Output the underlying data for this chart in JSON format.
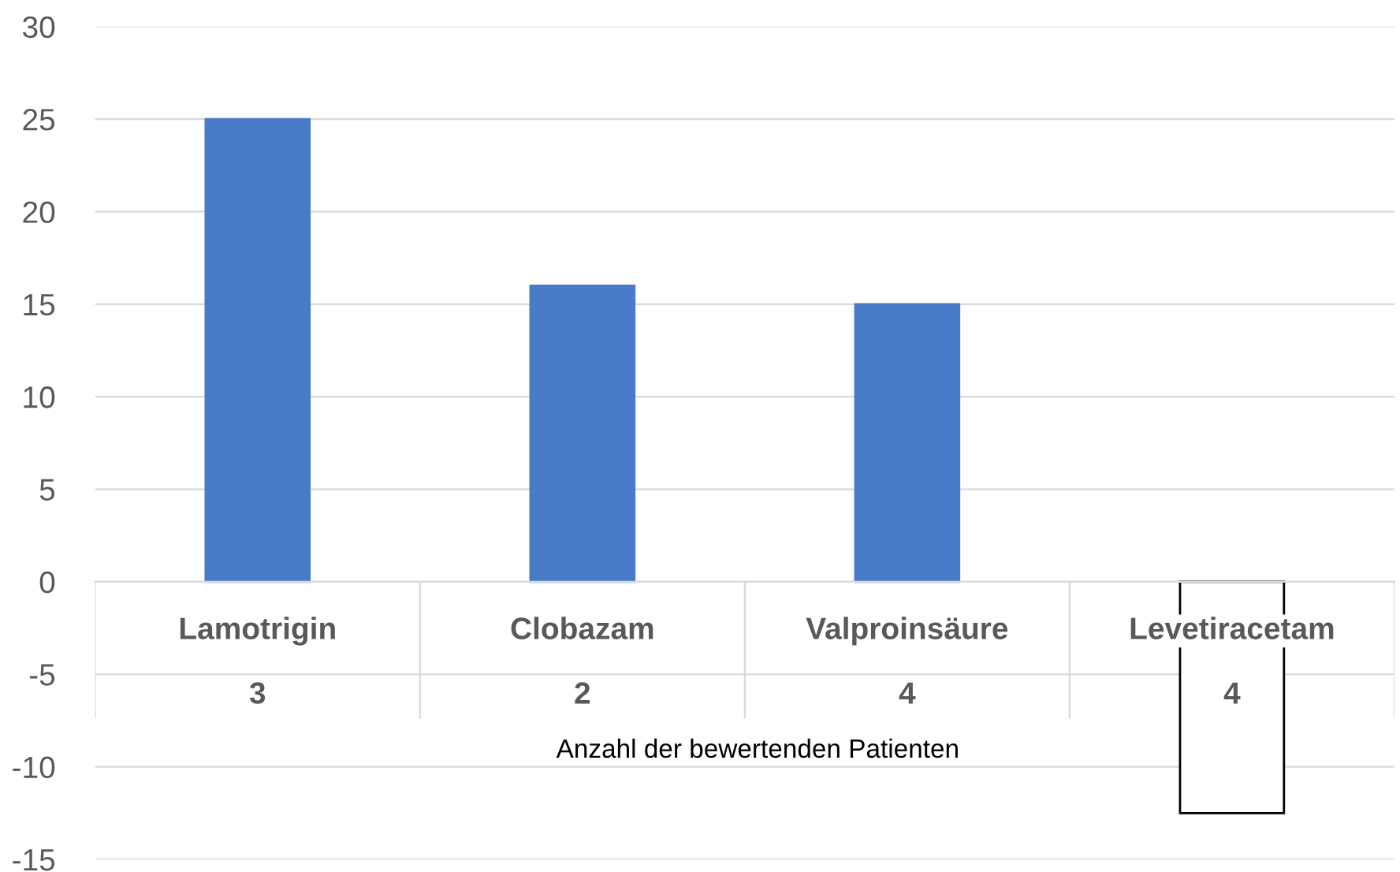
{
  "chart_data": {
    "type": "bar",
    "categories": [
      "Lamotrigin",
      "Clobazam",
      "Valproinsäure",
      "Levetiracetam"
    ],
    "values": [
      25,
      16,
      15,
      -12.5
    ],
    "colors": [
      "#4a7bc8",
      "#4a7bc8",
      "#4a7bc8",
      "#ffffff"
    ],
    "xlabel": "Anzahl der bewertenden Patienten",
    "annotations": [
      "3",
      "2",
      "4",
      "4"
    ],
    "ylim": [
      -15,
      30
    ],
    "yticks": [
      -15,
      -10,
      -5,
      0,
      5,
      10,
      15,
      20,
      25,
      30
    ],
    "grid": "y"
  }
}
